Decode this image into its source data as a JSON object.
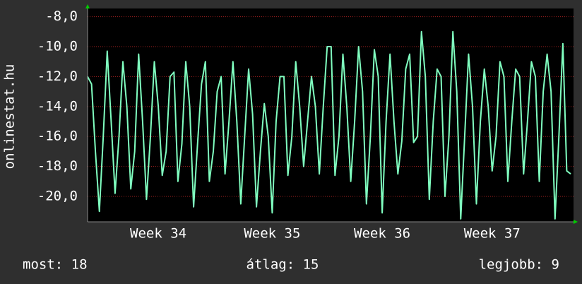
{
  "chart_data": {
    "type": "line",
    "y_label": "onlinestat.hu",
    "categories": [
      null,
      null,
      null,
      null,
      null,
      null,
      null,
      null,
      null,
      null,
      null,
      null,
      null,
      null,
      null,
      null,
      null,
      null,
      "Week 34",
      null,
      null,
      null,
      null,
      null,
      null,
      null,
      null,
      null,
      null,
      null,
      null,
      null,
      null,
      null,
      null,
      null,
      null,
      null,
      null,
      null,
      null,
      null,
      null,
      null,
      null,
      null,
      null,
      "Week 35",
      null,
      null,
      null,
      null,
      null,
      null,
      null,
      null,
      null,
      null,
      null,
      null,
      null,
      null,
      null,
      null,
      null,
      null,
      null,
      null,
      null,
      null,
      null,
      null,
      null,
      null,
      null,
      "Week 36",
      null,
      null,
      null,
      null,
      null,
      null,
      null,
      null,
      null,
      null,
      null,
      null,
      null,
      null,
      null,
      null,
      null,
      null,
      null,
      null,
      null,
      null,
      null,
      null,
      null,
      null,
      null,
      "Week 37",
      null,
      null,
      null,
      null,
      null,
      null,
      null,
      null,
      null,
      null,
      null,
      null,
      null,
      null,
      null,
      null,
      null,
      null,
      null,
      null
    ],
    "series": [
      {
        "color": "#80ffc0",
        "values": [
          -12,
          -12.5,
          -17,
          -21,
          -16,
          -10.3,
          -15,
          -19.8,
          -16,
          -11,
          -14,
          -19.5,
          -17,
          -10.5,
          -15,
          -20.2,
          -16,
          -11,
          -14,
          -18.6,
          -17,
          -12,
          -11.7,
          -19,
          -16.5,
          -11,
          -14,
          -20.7,
          -16.5,
          -12.5,
          -11,
          -19,
          -17,
          -13,
          -12,
          -18.5,
          -15,
          -11,
          -15,
          -20.5,
          -16,
          -11.5,
          -14.5,
          -20.7,
          -17,
          -13.8,
          -16,
          -21.1,
          -15,
          -12,
          -12,
          -18.6,
          -16,
          -11,
          -14,
          -18,
          -15,
          -12,
          -14,
          -18.5,
          -14,
          -10,
          -10,
          -18.6,
          -16,
          -10.5,
          -14,
          -19,
          -15,
          -10,
          -13,
          -20.5,
          -16,
          -10.2,
          -12,
          -21.1,
          -15,
          -10.5,
          -15,
          -18.5,
          -16.3,
          -11.5,
          -10.5,
          -16.4,
          -16,
          -9,
          -12,
          -20.2,
          -15,
          -11.5,
          -12,
          -20,
          -16,
          -9,
          -13,
          -21.5,
          -16,
          -10.5,
          -14,
          -20.5,
          -15,
          -11.5,
          -14,
          -18.3,
          -16,
          -11,
          -12,
          -19,
          -15,
          -11.5,
          -12,
          -18.5,
          -15,
          -11,
          -12,
          -19,
          -13,
          -10.5,
          -13,
          -21.5,
          -16,
          -9.8,
          -18.3,
          -18.5
        ]
      }
    ],
    "ylim": [
      -21.7,
      -7.45
    ],
    "yticks": [
      {
        "value": -8,
        "label": "-8,0"
      },
      {
        "value": -10,
        "label": "-10,0"
      },
      {
        "value": -12,
        "label": "-12,0"
      },
      {
        "value": -14,
        "label": "-14,0"
      },
      {
        "value": -16,
        "label": "-16,0"
      },
      {
        "value": -18,
        "label": "-18,0"
      },
      {
        "value": -20,
        "label": "-20,0"
      }
    ],
    "grid": true,
    "annotations": [
      "most: 18",
      "átlag: 15",
      "legjobb: 9"
    ]
  }
}
